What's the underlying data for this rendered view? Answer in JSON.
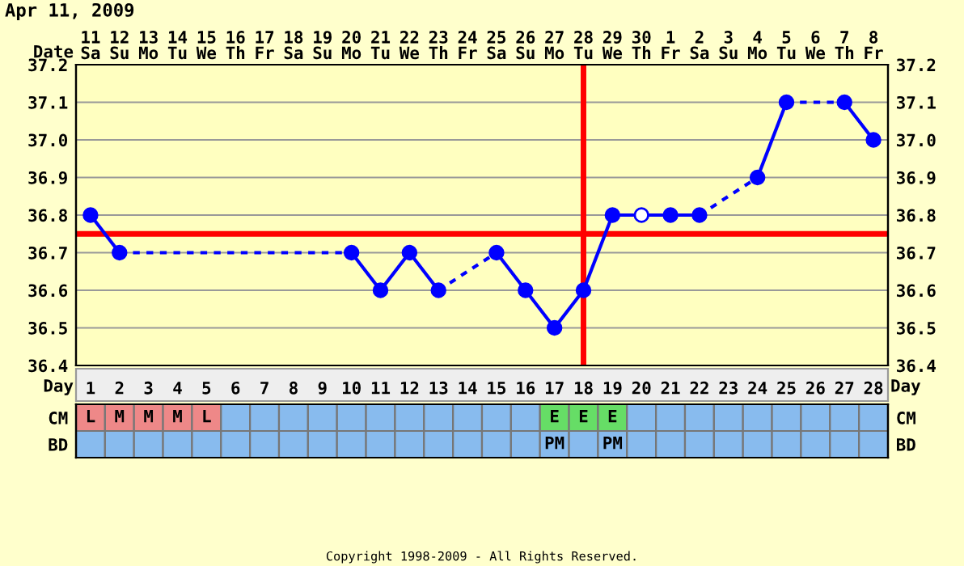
{
  "chart_data": [
    {
      "type": "line",
      "title": "Apr 11, 2009",
      "xlabel": "Date",
      "x": [
        "2009-04-11",
        "2009-04-12",
        "2009-04-13",
        "2009-04-14",
        "2009-04-15",
        "2009-04-16",
        "2009-04-17",
        "2009-04-18",
        "2009-04-19",
        "2009-04-20",
        "2009-04-21",
        "2009-04-22",
        "2009-04-23",
        "2009-04-24",
        "2009-04-25",
        "2009-04-26",
        "2009-04-27",
        "2009-04-28",
        "2009-04-29",
        "2009-04-30",
        "2009-05-01",
        "2009-05-02",
        "2009-05-03",
        "2009-05-04",
        "2009-05-05",
        "2009-05-06",
        "2009-05-07",
        "2009-05-08"
      ],
      "xlim": [
        "2009-04-10T12:00",
        "2009-05-08T12:00"
      ],
      "xticks": [
        {
          "value": "2009-04-11",
          "label": "11\nSa"
        },
        {
          "value": "2009-04-12",
          "label": "12\nSu"
        },
        {
          "value": "2009-04-13",
          "label": "13\nMo"
        },
        {
          "value": "2009-04-14",
          "label": "14\nTu"
        },
        {
          "value": "2009-04-15",
          "label": "15\nWe"
        },
        {
          "value": "2009-04-16",
          "label": "16\nTh"
        },
        {
          "value": "2009-04-17",
          "label": "17\nFr"
        },
        {
          "value": "2009-04-18",
          "label": "18\nSa"
        },
        {
          "value": "2009-04-19",
          "label": "19\nSu"
        },
        {
          "value": "2009-04-20",
          "label": "20\nMo"
        },
        {
          "value": "2009-04-21",
          "label": "21\nTu"
        },
        {
          "value": "2009-04-22",
          "label": "22\nWe"
        },
        {
          "value": "2009-04-23",
          "label": "23\nTh"
        },
        {
          "value": "2009-04-24",
          "label": "24\nFr"
        },
        {
          "value": "2009-04-25",
          "label": "25\nSa"
        },
        {
          "value": "2009-04-26",
          "label": "26\nSu"
        },
        {
          "value": "2009-04-27",
          "label": "27\nMo"
        },
        {
          "value": "2009-04-28",
          "label": "28\nTu"
        },
        {
          "value": "2009-04-29",
          "label": "29\nWe"
        },
        {
          "value": "2009-04-30",
          "label": "30\nTh"
        },
        {
          "value": "2009-05-01",
          "label": "1\nFr"
        },
        {
          "value": "2009-05-02",
          "label": "2\nSa"
        },
        {
          "value": "2009-05-03",
          "label": "3\nSu"
        },
        {
          "value": "2009-05-04",
          "label": "4\nMo"
        },
        {
          "value": "2009-05-05",
          "label": "5\nTu"
        },
        {
          "value": "2009-05-06",
          "label": "6\nWe"
        },
        {
          "value": "2009-05-07",
          "label": "7\nTh"
        },
        {
          "value": "2009-05-08",
          "label": "8\nFr"
        }
      ],
      "series": [
        {
          "type": "line",
          "color": "#0000ff",
          "values": [
            36.8,
            36.7,
            null,
            null,
            null,
            null,
            null,
            null,
            null,
            36.7,
            36.6,
            36.7,
            36.6,
            null,
            36.7,
            36.6,
            36.5,
            36.6,
            36.8,
            null,
            36.8,
            36.8,
            null,
            36.9,
            37.1,
            null,
            37.1,
            37.0
          ]
        },
        {
          "type": "scatter",
          "color": "#ffffff",
          "values": [
            null,
            null,
            null,
            null,
            null,
            null,
            null,
            null,
            null,
            null,
            null,
            null,
            null,
            null,
            null,
            null,
            null,
            null,
            null,
            36.8,
            null,
            null,
            null,
            null,
            null,
            null,
            null,
            null
          ]
        }
      ],
      "marker": "circle",
      "ylim": [
        36.4,
        37.2
      ],
      "yticks": [
        36.4,
        36.5,
        36.6,
        36.7,
        36.8,
        36.9,
        {
          "value": 37.0,
          "label": "37.0"
        },
        37.1,
        37.2
      ],
      "y2lim": [
        36.4,
        37.2
      ],
      "y2ticks": [
        36.4,
        36.5,
        36.6,
        36.7,
        36.8,
        36.9,
        {
          "value": 37.0,
          "label": "37.0"
        },
        37.1,
        37.2
      ],
      "ref_lines": [
        {
          "axis": "y",
          "value": 36.75,
          "label": null,
          "color": "#ff0000"
        },
        {
          "axis": "x",
          "value": "2009-04-28",
          "label": null,
          "color": "#ff0000"
        }
      ],
      "grid": true,
      "legend": false,
      "annotations": [
        "Copyright 1998-2009 - All Rights Reserved."
      ]
    },
    {
      "type": "heatmap",
      "xlabel": "Day",
      "categories": [
        "1",
        "2",
        "3",
        "4",
        "5",
        "6",
        "7",
        "8",
        "9",
        "10",
        "11",
        "12",
        "13",
        "14",
        "15",
        "16",
        "17",
        "18",
        "19",
        "20",
        "21",
        "22",
        "23",
        "24",
        "25",
        "26",
        "27",
        "28"
      ],
      "y_categories": [
        "CM",
        "BD"
      ],
      "y2_categories": [
        "CM",
        "BD"
      ],
      "cells": [
        [
          null,
          null,
          null,
          null,
          null,
          null,
          null,
          null,
          null,
          null,
          null,
          null,
          null,
          null,
          null,
          null,
          null,
          null,
          null,
          null,
          null,
          null,
          null,
          null,
          null,
          null,
          null,
          null
        ],
        [
          null,
          null,
          null,
          null,
          null,
          null,
          null,
          null,
          null,
          null,
          null,
          null,
          null,
          null,
          null,
          null,
          null,
          null,
          null,
          null,
          null,
          null,
          null,
          null,
          null,
          null,
          null,
          null
        ]
      ],
      "cell_labels": [
        [
          "L",
          "M",
          "M",
          "M",
          "L",
          null,
          null,
          null,
          null,
          null,
          null,
          null,
          null,
          null,
          null,
          null,
          "E",
          "E",
          "E",
          null,
          null,
          null,
          null,
          null,
          null,
          null,
          null,
          null
        ],
        [
          null,
          null,
          null,
          null,
          null,
          null,
          null,
          null,
          null,
          null,
          null,
          null,
          null,
          null,
          null,
          null,
          "PM",
          null,
          "PM",
          null,
          null,
          null,
          null,
          null,
          null,
          null,
          null,
          null
        ]
      ],
      "colors": [
        [
          "#ee8888",
          "#ee8888",
          "#ee8888",
          "#ee8888",
          "#ee8888",
          "#88bbee",
          "#88bbee",
          "#88bbee",
          "#88bbee",
          "#88bbee",
          "#88bbee",
          "#88bbee",
          "#88bbee",
          "#88bbee",
          "#88bbee",
          "#88bbee",
          "#66dd66",
          "#66dd66",
          "#66dd66",
          "#88bbee",
          "#88bbee",
          "#88bbee",
          "#88bbee",
          "#88bbee",
          "#88bbee",
          "#88bbee",
          "#88bbee",
          "#88bbee"
        ],
        [
          "#88bbee",
          "#88bbee",
          "#88bbee",
          "#88bbee",
          "#88bbee",
          "#88bbee",
          "#88bbee",
          "#88bbee",
          "#88bbee",
          "#88bbee",
          "#88bbee",
          "#88bbee",
          "#88bbee",
          "#88bbee",
          "#88bbee",
          "#88bbee",
          "#88bbee",
          "#88bbee",
          "#88bbee",
          "#88bbee",
          "#88bbee",
          "#88bbee",
          "#88bbee",
          "#88bbee",
          "#88bbee",
          "#88bbee",
          "#88bbee",
          "#88bbee"
        ]
      ]
    }
  ]
}
